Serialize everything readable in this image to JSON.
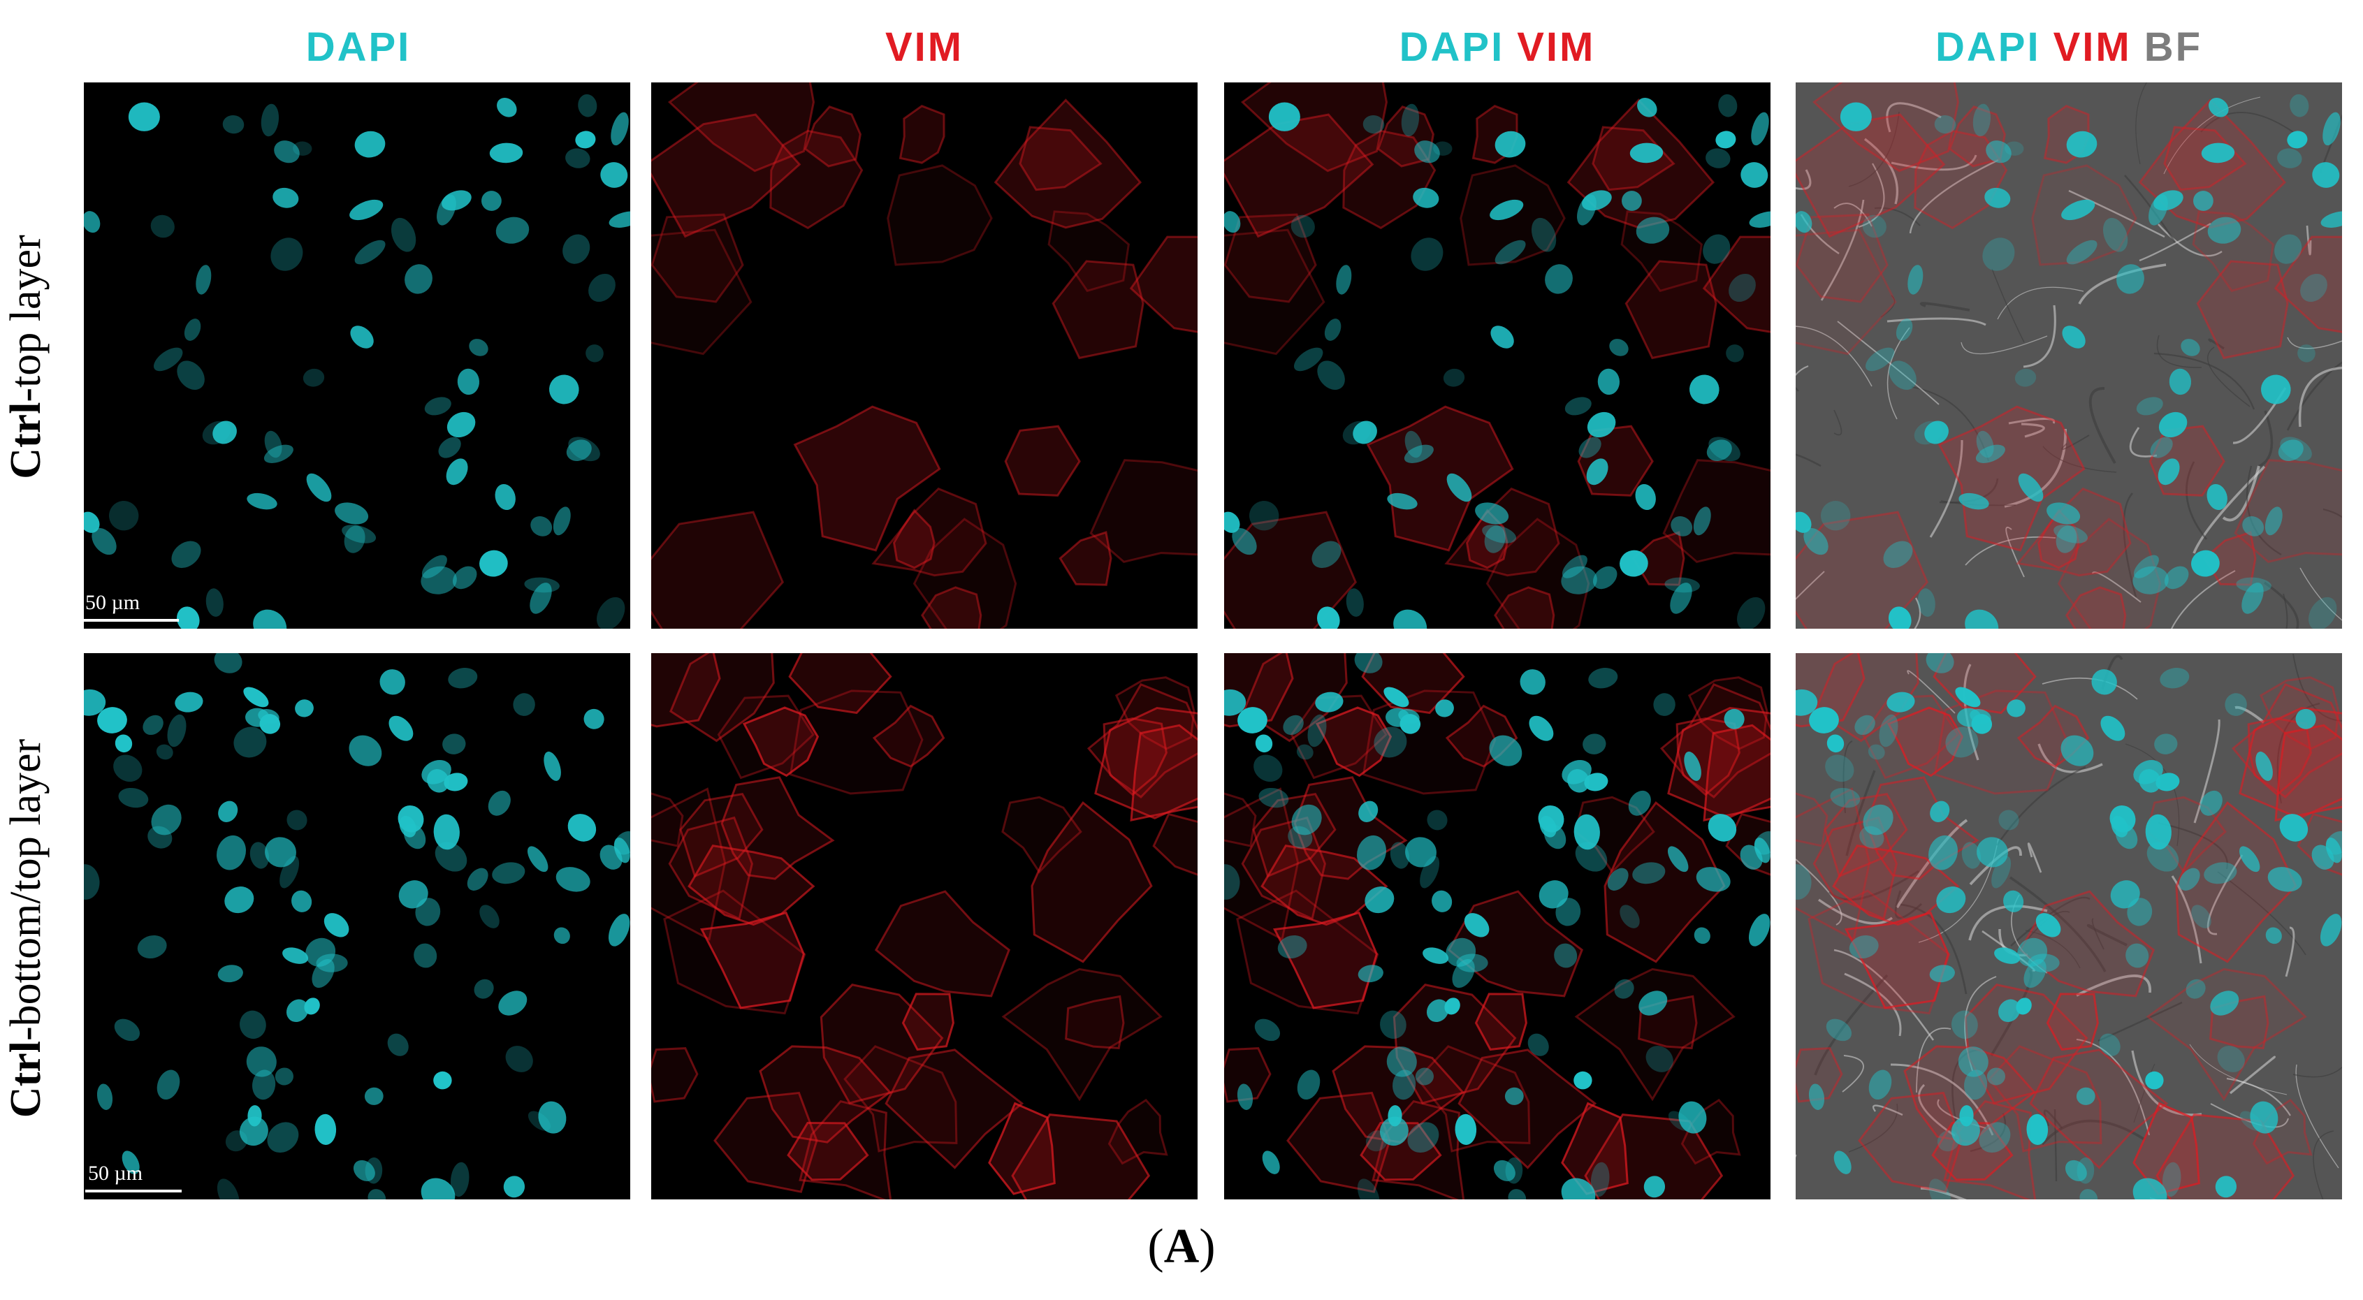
{
  "columns": {
    "dapi": {
      "part1": "DAPI"
    },
    "vim": {
      "part1": "VIM"
    },
    "merge": {
      "part1": "DAPI",
      "part2": "VIM"
    },
    "merge_bf": {
      "part1": "DAPI",
      "part2": "VIM",
      "part3": "BF"
    }
  },
  "rows": {
    "top": {
      "ctrl": "Ctrl",
      "rest": "-top layer"
    },
    "bottom": {
      "ctrl": "Ctrl",
      "rest": "-bottom/top layer"
    }
  },
  "scale_bar": {
    "label": "50 µm"
  },
  "caption": "(A)",
  "colors": {
    "dapi": "#21c2c8",
    "vim": "#e11b22",
    "bf": "#7d7d7d",
    "panel_bg": "#000000",
    "bf_bg": "#555555"
  }
}
